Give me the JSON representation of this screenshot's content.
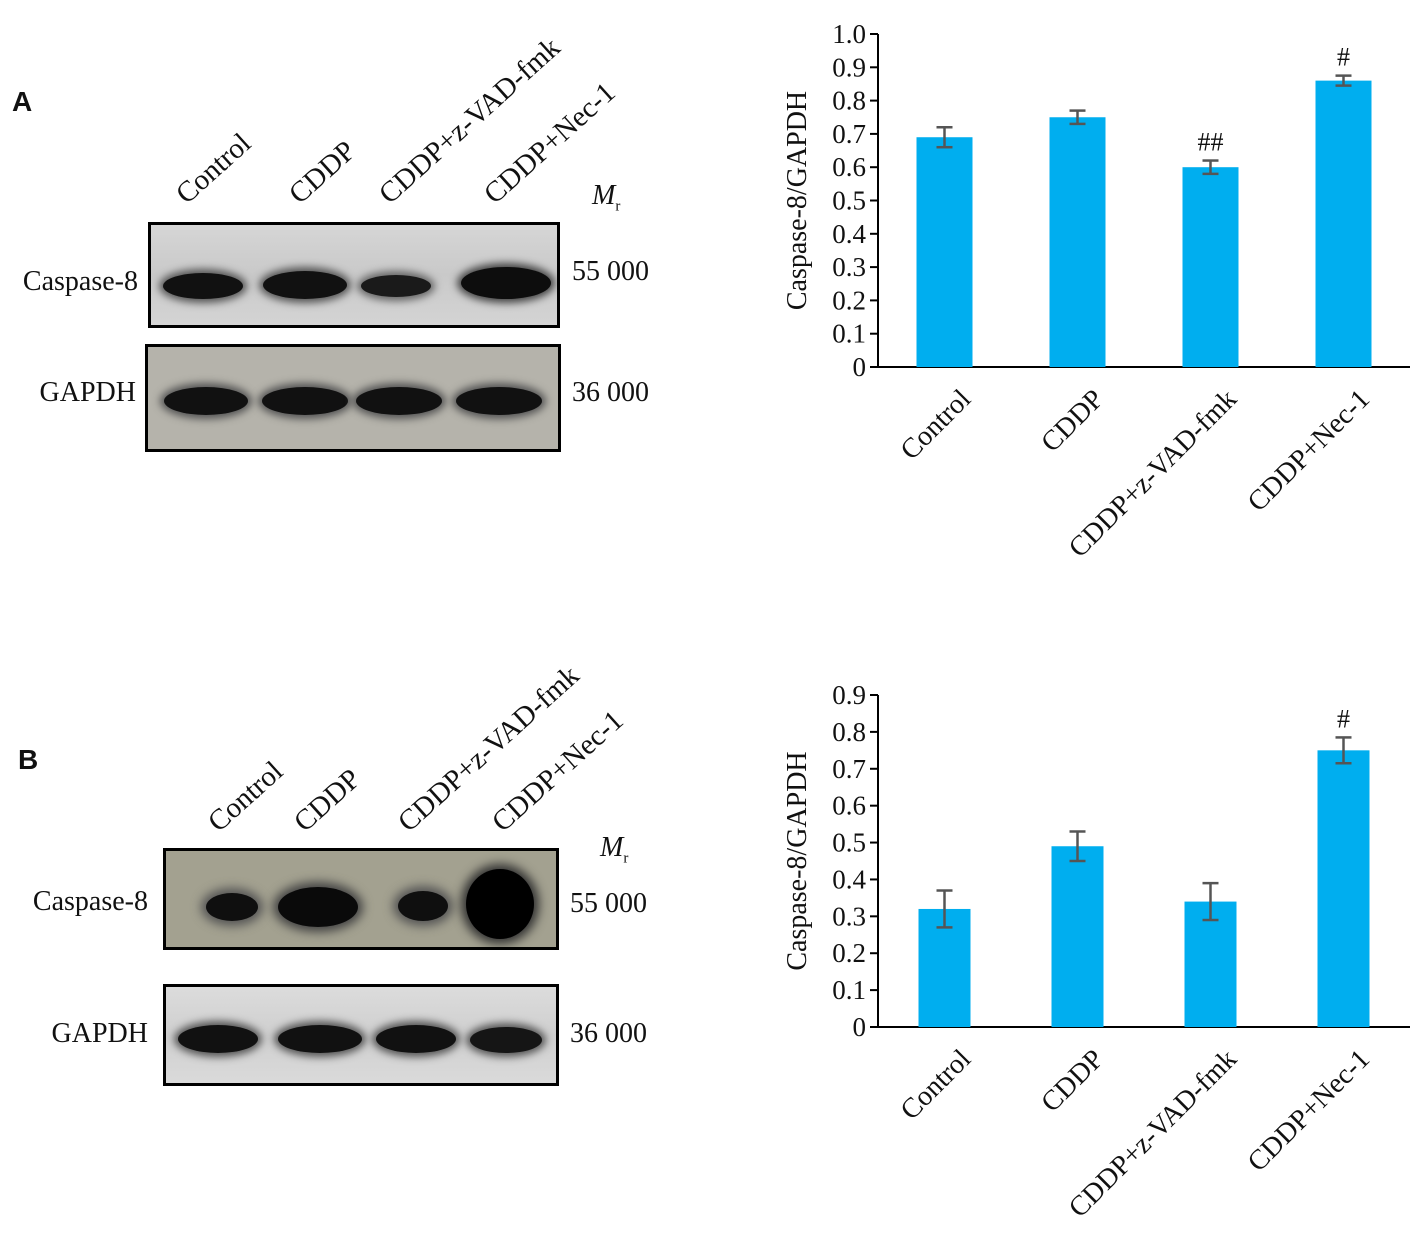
{
  "panels": [
    {
      "letter": "A",
      "lanes": [
        "Control",
        "CDDP",
        "CDDP+z-VAD-fmk",
        "CDDP+Nec-1"
      ],
      "mr_symbol": "M",
      "mr_subscript": "r",
      "rows": [
        {
          "label": "Caspase-8",
          "mw": "55 000"
        },
        {
          "label": "GAPDH",
          "mw": "36 000"
        }
      ]
    },
    {
      "letter": "B",
      "lanes": [
        "Control",
        "CDDP",
        "CDDP+z-VAD-fmk",
        "CDDP+Nec-1"
      ],
      "mr_symbol": "M",
      "mr_subscript": "r",
      "rows": [
        {
          "label": "Caspase-8",
          "mw": "55 000"
        },
        {
          "label": "GAPDH",
          "mw": "36 000"
        }
      ]
    }
  ],
  "chart_data": [
    {
      "type": "bar",
      "categories": [
        "Control",
        "CDDP",
        "CDDP+z-VAD-fmk",
        "CDDP+Nec-1"
      ],
      "values": [
        0.69,
        0.75,
        0.6,
        0.86
      ],
      "errors": [
        0.03,
        0.02,
        0.02,
        0.015
      ],
      "annotations": [
        "",
        "",
        "##",
        "#"
      ],
      "ylabel": "Caspase-8/GAPDH",
      "ylim": [
        0,
        1.0
      ],
      "yticks": [
        "0",
        "0.1",
        "0.2",
        "0.3",
        "0.4",
        "0.5",
        "0.6",
        "0.7",
        "0.8",
        "0.9",
        "1.0"
      ],
      "bar_color": "#00AEEF",
      "grid": false
    },
    {
      "type": "bar",
      "categories": [
        "Control",
        "CDDP",
        "CDDP+z-VAD-fmk",
        "CDDP+Nec-1"
      ],
      "values": [
        0.32,
        0.49,
        0.34,
        0.75
      ],
      "errors": [
        0.05,
        0.04,
        0.05,
        0.035
      ],
      "annotations": [
        "",
        "",
        "",
        "#"
      ],
      "ylabel": "Caspase-8/GAPDH",
      "ylim": [
        0,
        0.9
      ],
      "yticks": [
        "0",
        "0.1",
        "0.2",
        "0.3",
        "0.4",
        "0.5",
        "0.6",
        "0.7",
        "0.8",
        "0.9"
      ],
      "bar_color": "#00AEEF",
      "grid": false
    }
  ]
}
